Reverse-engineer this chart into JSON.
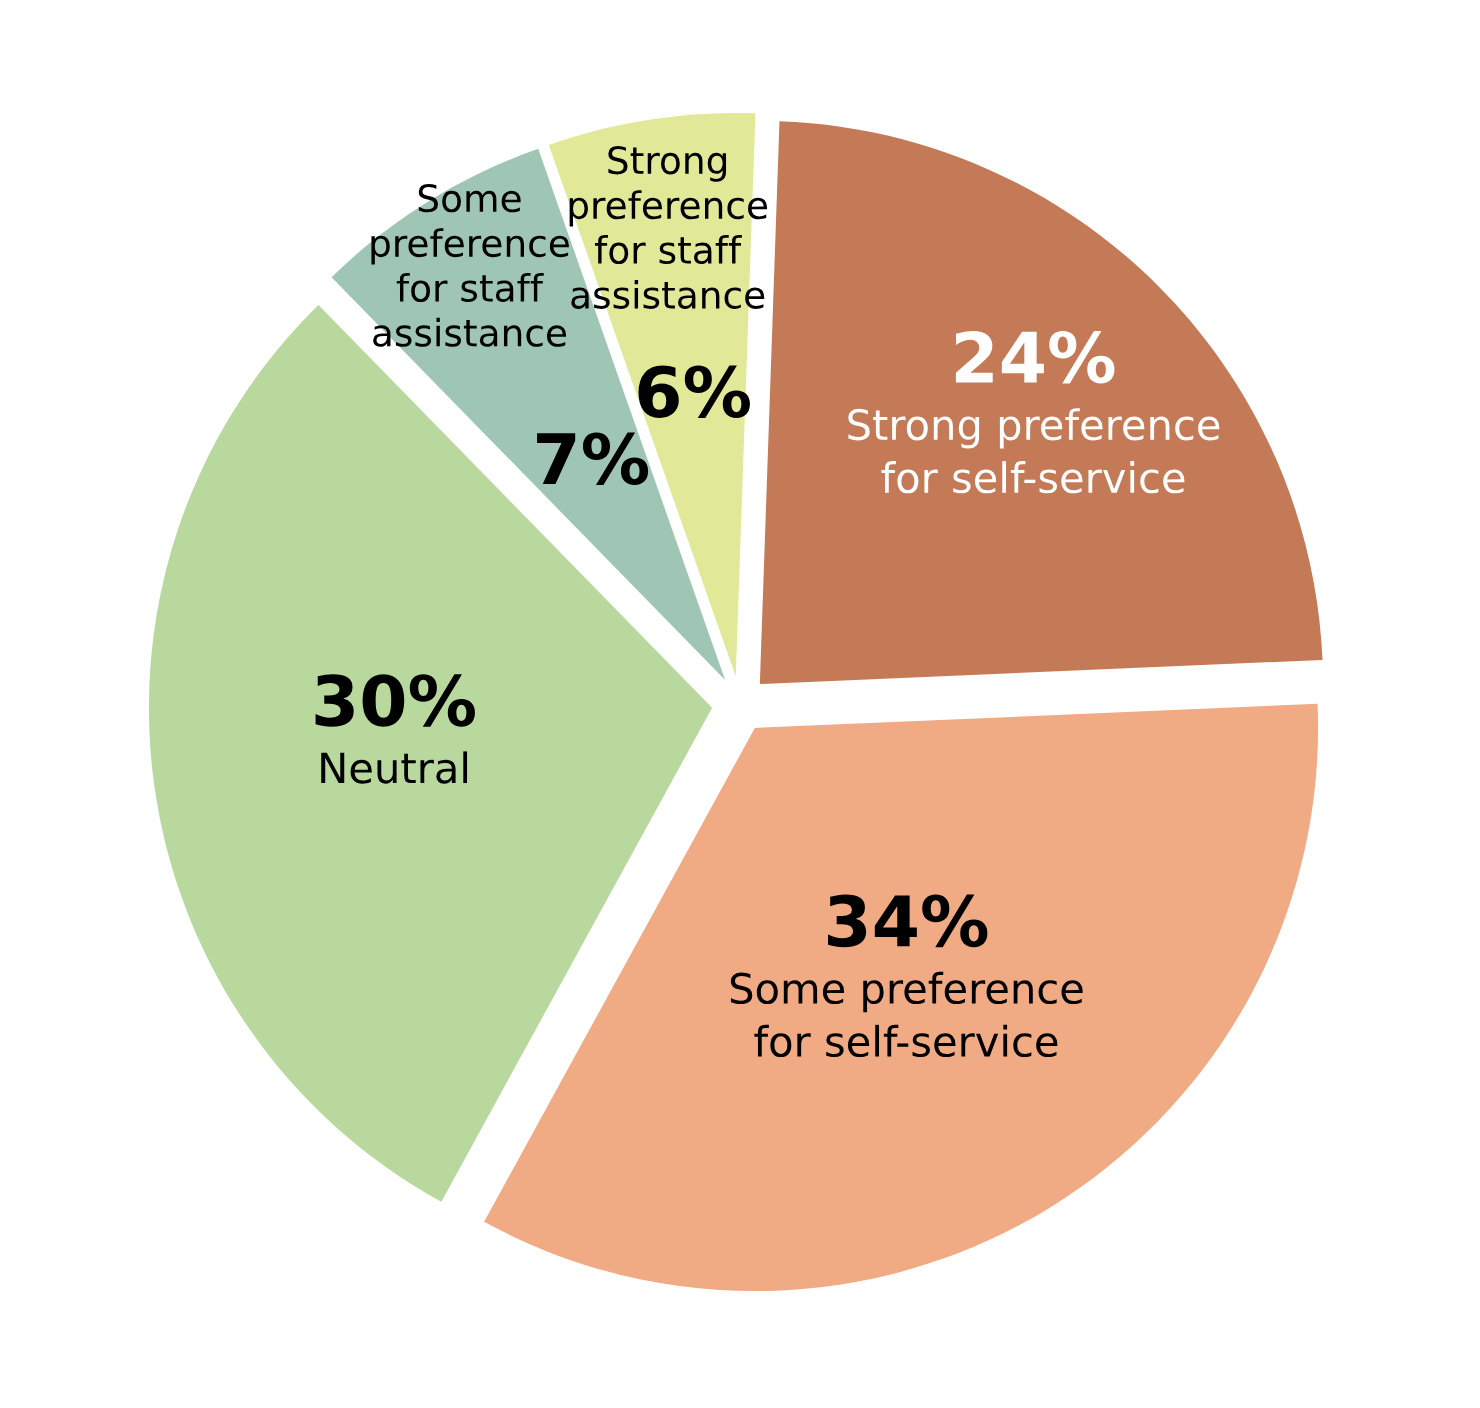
{
  "chart_data": {
    "type": "pie",
    "categories": [
      "Strong preference\nfor self-service",
      "Some preference\nfor self-service",
      "Neutral",
      "Some\npreference\nfor staff\nassistance",
      "Strong\npreference\nfor staff\nassistance"
    ],
    "values": [
      24,
      34,
      30,
      7,
      6
    ],
    "value_labels": [
      "24%",
      "34%",
      "30%",
      "7%",
      "6%"
    ],
    "colors": [
      "#c47a56",
      "#f0aa84",
      "#b9d89e",
      "#9fc5b5",
      "#e1e898"
    ],
    "legend": false
  }
}
